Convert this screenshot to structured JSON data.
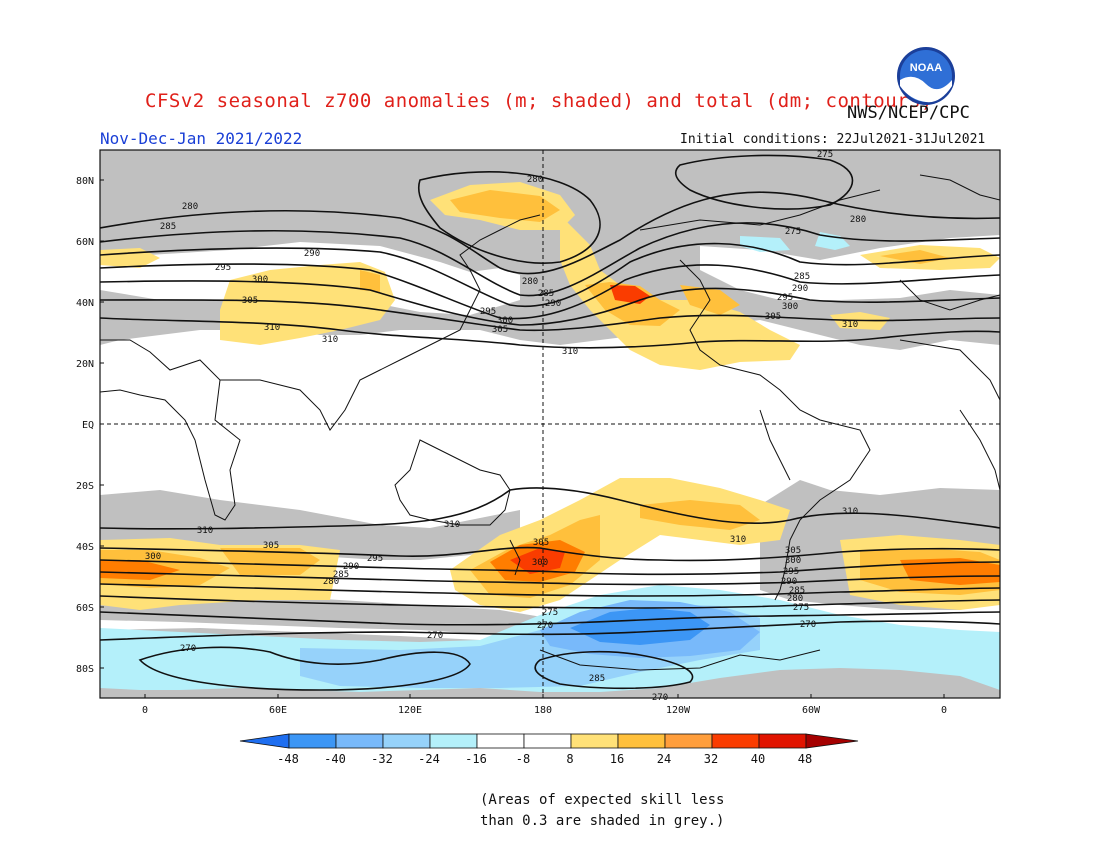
{
  "header": {
    "title": "CFSv2 seasonal z700 anomalies (m; shaded) and total (dm; contours)",
    "agency": "NWS/NCEP/CPC",
    "period": "Nov-Dec-Jan 2021/2022",
    "initial_conditions": "Initial conditions: 22Jul2021-31Jul2021",
    "logo_text": "NOAA"
  },
  "map": {
    "lat_labels": [
      "80N",
      "60N",
      "40N",
      "20N",
      "EQ",
      "20S",
      "40S",
      "60S",
      "80S"
    ],
    "lon_labels": [
      "0",
      "60E",
      "120E",
      "180",
      "120W",
      "60W",
      "0"
    ],
    "contour_labels": [
      "275",
      "280",
      "285",
      "290",
      "295",
      "300",
      "305",
      "310",
      "270"
    ],
    "colors": {
      "grey_low_skill": "#c0c0c0",
      "neg_8_16": "#b4f0fa",
      "neg_16_24": "#96d2fa",
      "neg_24_32": "#78b9fa",
      "neg_32_40": "#3c96f5",
      "pos_8_16": "#ffe178",
      "pos_16_24": "#ffc03c",
      "pos_24_32": "#ff7d00",
      "pos_32_40": "#fa3c00",
      "pos_40_48": "#e11400",
      "contour": "#111111",
      "coast": "#111111"
    }
  },
  "colorbar": {
    "labels": [
      "-48",
      "-40",
      "-32",
      "-24",
      "-16",
      "-8",
      "8",
      "16",
      "24",
      "32",
      "40",
      "48"
    ],
    "colors": [
      "#1e6ef0",
      "#3c96f5",
      "#78b9fa",
      "#96d2fa",
      "#b4f0fa",
      "#ffffff",
      "#ffe178",
      "#ffc03c",
      "#ff9e3c",
      "#ff7d00",
      "#fa3c00",
      "#e11400",
      "#a50000"
    ]
  },
  "footnote": {
    "line1": "(Areas of expected skill less",
    "line2": "than 0.3 are shaded in grey.)"
  }
}
